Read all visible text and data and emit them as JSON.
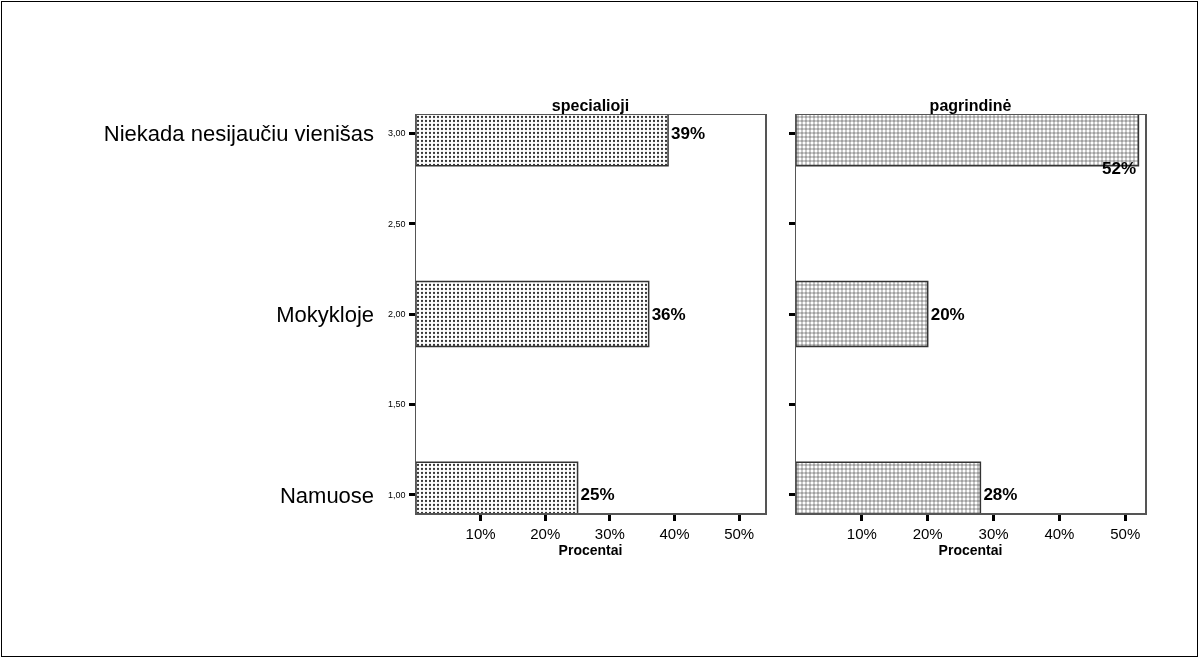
{
  "chart_data": [
    {
      "type": "bar",
      "orientation": "horizontal",
      "title": "specialioji",
      "xlabel": "Procentai",
      "categories": [
        "Niekada nesijaučiu vienišas",
        "Mokykloje",
        "Namuose"
      ],
      "series": [
        {
          "color": "#333333",
          "values": [
            39,
            36,
            25
          ]
        }
      ],
      "value_labels": [
        "39%",
        "36%",
        "25%"
      ],
      "xlim": [
        0,
        54
      ],
      "xticks": [
        {
          "value": 10,
          "label": "10%"
        },
        {
          "value": 20,
          "label": "20%"
        },
        {
          "value": 30,
          "label": "30%"
        },
        {
          "value": 40,
          "label": "40%"
        },
        {
          "value": 50,
          "label": "50%"
        }
      ],
      "annotations": [
        "3,00",
        "2,50",
        "2,00",
        "1,50",
        "1,00"
      ],
      "grid": false,
      "legend": false
    },
    {
      "type": "bar",
      "orientation": "horizontal",
      "title": "pagrindinė",
      "xlabel": "Procentai",
      "categories": [
        null,
        null,
        null
      ],
      "series": [
        {
          "color": "#333333",
          "values": [
            52,
            20,
            28
          ]
        }
      ],
      "value_labels": [
        "52%",
        "20%",
        "28%"
      ],
      "xlim": [
        0,
        53
      ],
      "xticks": [
        {
          "value": 10,
          "label": "10%"
        },
        {
          "value": 20,
          "label": "20%"
        },
        {
          "value": 30,
          "label": "30%"
        },
        {
          "value": 40,
          "label": "40%"
        },
        {
          "value": 50,
          "label": "50%"
        }
      ],
      "tick_labels": "x",
      "grid": false,
      "legend": false
    }
  ]
}
